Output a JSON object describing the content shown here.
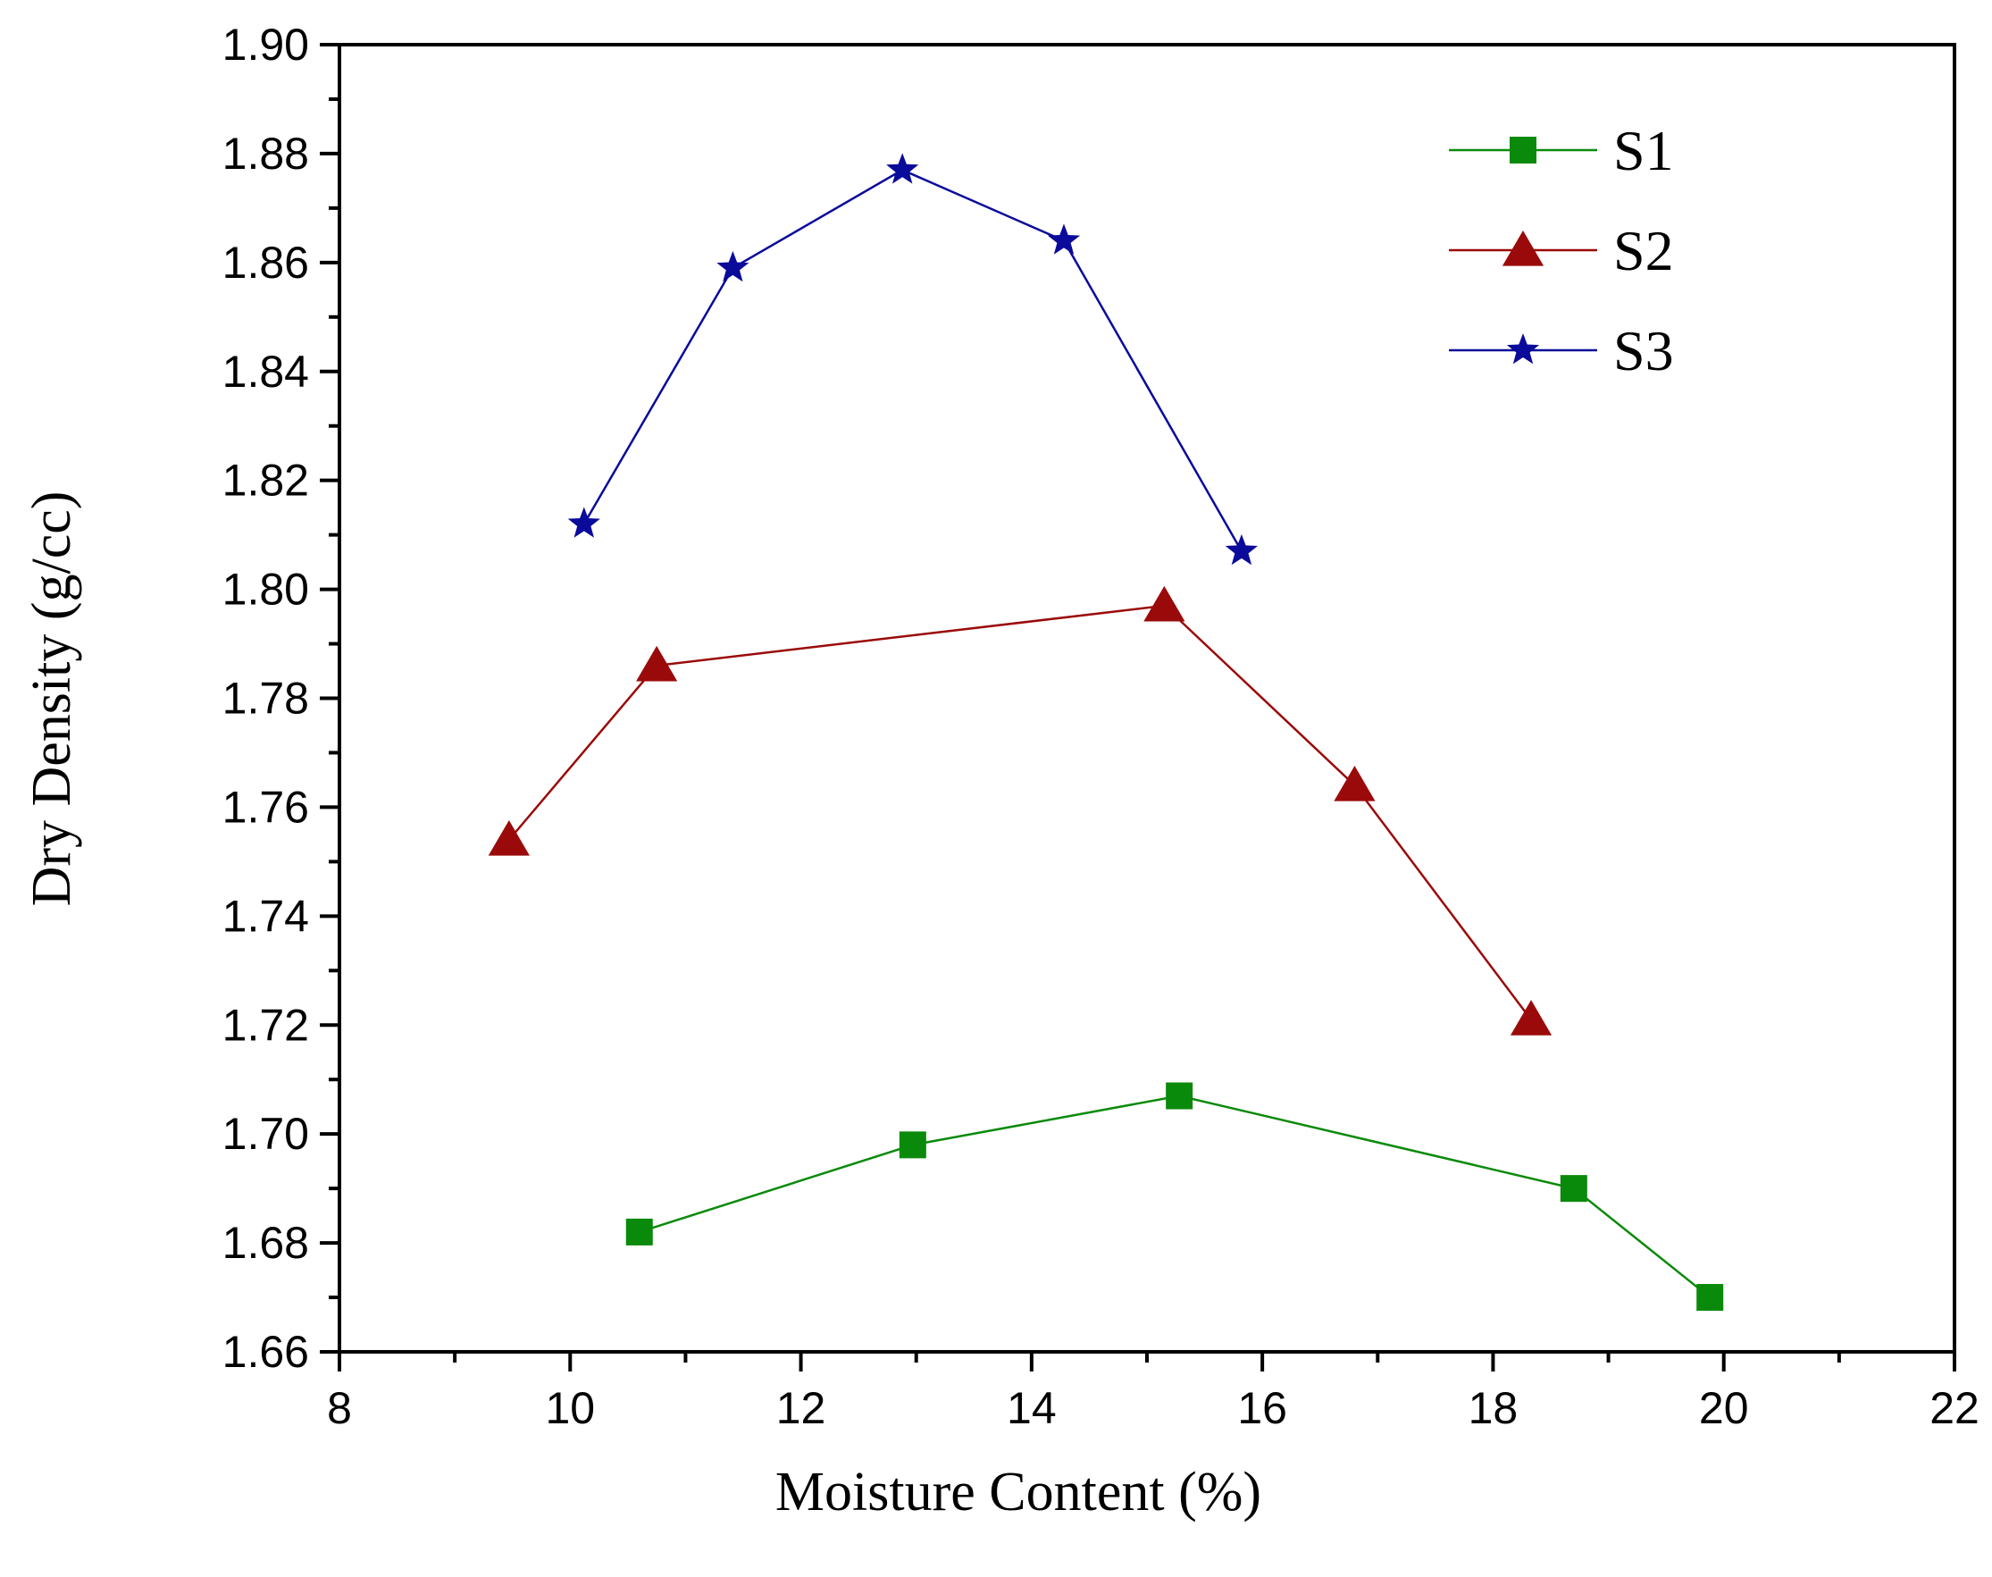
{
  "chart_data": {
    "type": "line",
    "title": "",
    "xlabel": "Moisture Content (%)",
    "ylabel": "Dry Density (g/cc)",
    "xlim": [
      8,
      22
    ],
    "ylim": [
      1.66,
      1.9
    ],
    "xticks": [
      "8",
      "10",
      "12",
      "14",
      "16",
      "18",
      "20",
      "22"
    ],
    "yticks": [
      "1.66",
      "1.68",
      "1.70",
      "1.72",
      "1.74",
      "1.76",
      "1.78",
      "1.80",
      "1.82",
      "1.84",
      "1.86",
      "1.88",
      "1.90"
    ],
    "grid": false,
    "legend_position": "top-right",
    "series": [
      {
        "name": "S1",
        "color": "#0a8a0a",
        "marker": "square",
        "x": [
          10.6,
          12.97,
          15.28,
          18.7,
          19.88
        ],
        "y": [
          1.682,
          1.698,
          1.707,
          1.69,
          1.67
        ]
      },
      {
        "name": "S2",
        "color": "#9b0a0a",
        "marker": "triangle",
        "x": [
          9.47,
          10.75,
          15.15,
          16.8,
          18.33
        ],
        "y": [
          1.754,
          1.786,
          1.797,
          1.764,
          1.721
        ]
      },
      {
        "name": "S3",
        "color": "#0a0a9b",
        "marker": "star",
        "x": [
          10.12,
          11.41,
          12.88,
          14.28,
          15.82
        ],
        "y": [
          1.812,
          1.859,
          1.877,
          1.864,
          1.807
        ]
      }
    ]
  }
}
